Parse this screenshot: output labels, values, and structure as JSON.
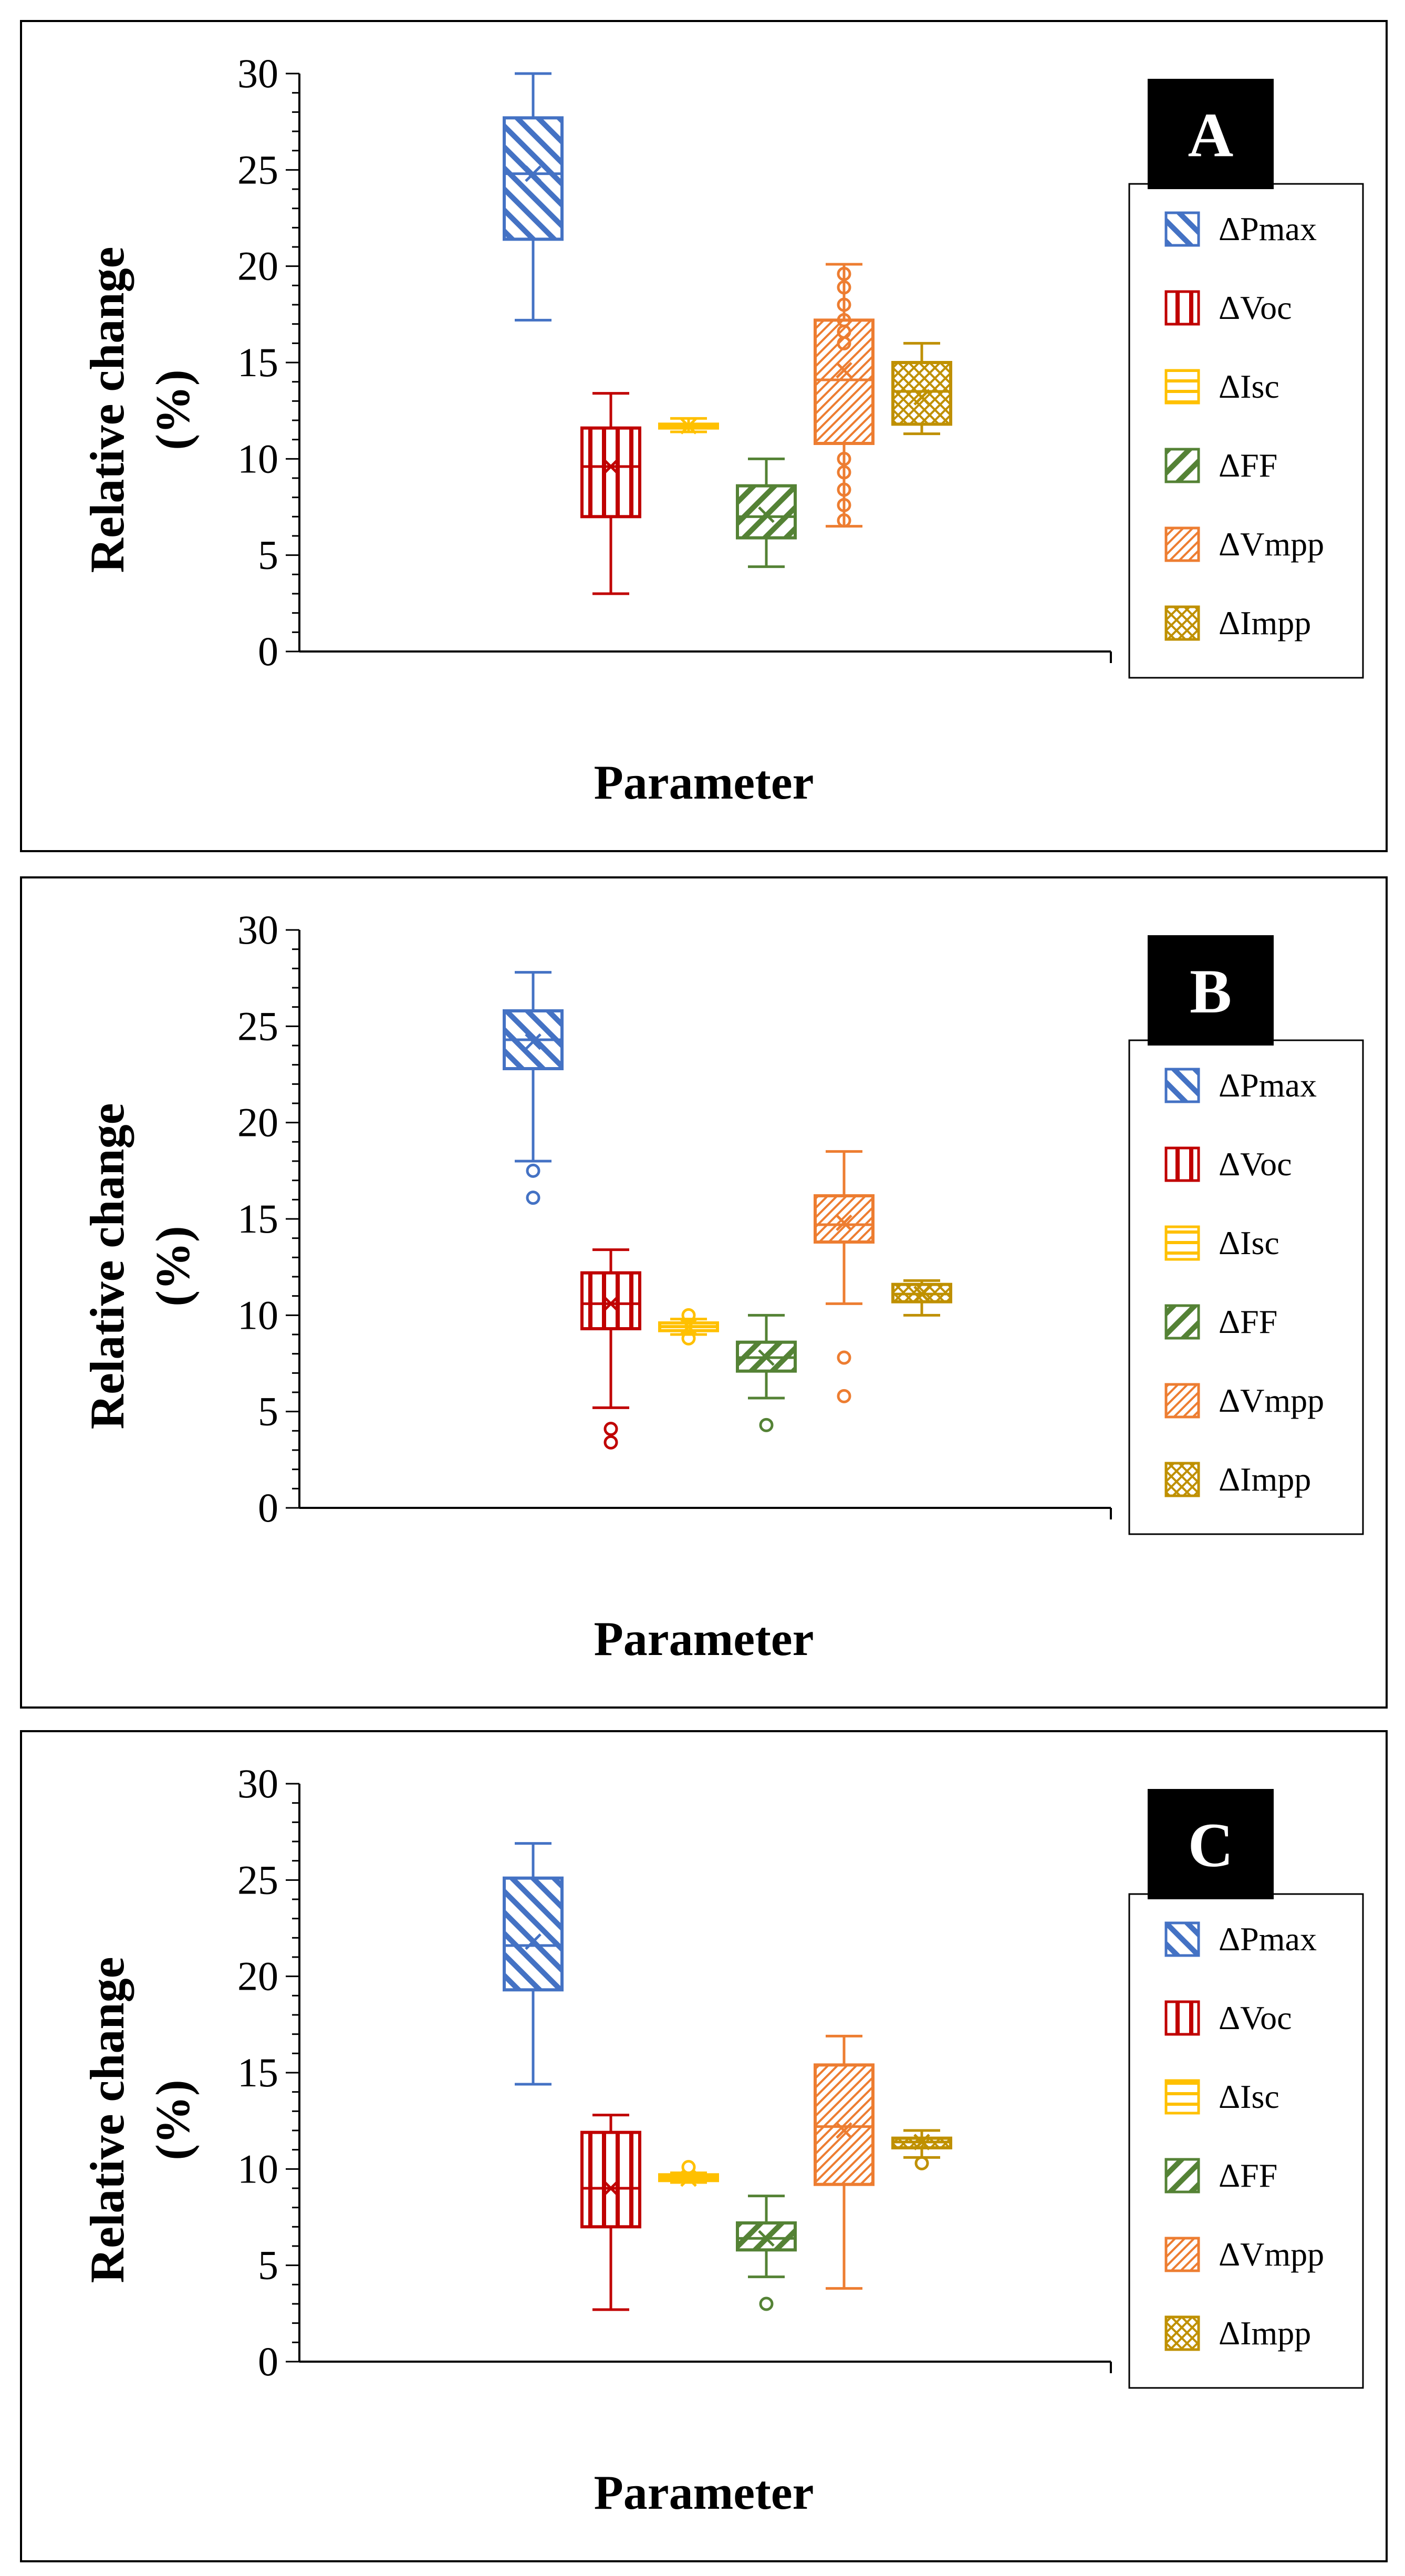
{
  "chart_data": [
    {
      "type": "box",
      "panel_label": "A",
      "xlabel": "Parameter",
      "ylabel_lines": [
        "Relative change",
        "(%)"
      ],
      "ylim": [
        0,
        30
      ],
      "yticks": [
        0,
        5,
        10,
        15,
        20,
        25,
        30
      ],
      "legend_position": "right",
      "series": [
        {
          "name": "ΔPmax",
          "color": "#4472C4",
          "pattern": "wide-downward-diagonal",
          "min": 17.2,
          "q1": 21.4,
          "median": 24.8,
          "q3": 27.7,
          "max": 30.0,
          "mean": 24.8,
          "outliers": []
        },
        {
          "name": "ΔVoc",
          "color": "#C00000",
          "pattern": "vertical",
          "min": 3.0,
          "q1": 7.0,
          "median": 9.6,
          "q3": 11.6,
          "max": 13.4,
          "mean": 9.6,
          "outliers": []
        },
        {
          "name": "ΔIsc",
          "color": "#FFC000",
          "pattern": "horizontal",
          "min": 11.4,
          "q1": 11.6,
          "median": 11.7,
          "q3": 11.8,
          "max": 12.1,
          "mean": 11.7,
          "outliers": []
        },
        {
          "name": "ΔFF",
          "color": "#548235",
          "pattern": "wide-upward-diagonal",
          "min": 4.4,
          "q1": 5.9,
          "median": 7.0,
          "q3": 8.6,
          "max": 10.0,
          "mean": 7.1,
          "outliers": []
        },
        {
          "name": "ΔVmpp",
          "color": "#ED7D31",
          "pattern": "dense-upward-diagonal",
          "min": 6.5,
          "q1": 10.8,
          "median": 14.1,
          "q3": 17.2,
          "max": 20.1,
          "mean": 14.6,
          "outliers": [
            6.8,
            7.6,
            8.4,
            9.3,
            10.0,
            16.0,
            16.6,
            17.2,
            18.0,
            18.9,
            19.6
          ]
        },
        {
          "name": "ΔImpp",
          "color": "#BF9000",
          "pattern": "diagonal-cross",
          "min": 11.3,
          "q1": 11.8,
          "median": 13.5,
          "q3": 15.0,
          "max": 16.0,
          "mean": 13.2,
          "outliers": []
        }
      ]
    },
    {
      "type": "box",
      "panel_label": "B",
      "xlabel": "Parameter",
      "ylabel_lines": [
        "Relative change",
        "(%)"
      ],
      "ylim": [
        0,
        30
      ],
      "yticks": [
        0,
        5,
        10,
        15,
        20,
        25,
        30
      ],
      "legend_position": "right",
      "series": [
        {
          "name": "ΔPmax",
          "color": "#4472C4",
          "pattern": "wide-downward-diagonal",
          "min": 18.0,
          "q1": 22.8,
          "median": 24.3,
          "q3": 25.8,
          "max": 27.8,
          "mean": 24.2,
          "outliers": [
            17.5,
            16.1
          ]
        },
        {
          "name": "ΔVoc",
          "color": "#C00000",
          "pattern": "vertical",
          "min": 5.2,
          "q1": 9.3,
          "median": 10.6,
          "q3": 12.2,
          "max": 13.4,
          "mean": 10.6,
          "outliers": [
            4.1,
            3.4
          ]
        },
        {
          "name": "ΔIsc",
          "color": "#FFC000",
          "pattern": "horizontal",
          "min": 9.0,
          "q1": 9.2,
          "median": 9.4,
          "q3": 9.6,
          "max": 9.8,
          "mean": 9.4,
          "outliers": [
            8.8,
            10.0
          ]
        },
        {
          "name": "ΔFF",
          "color": "#548235",
          "pattern": "wide-upward-diagonal",
          "min": 5.7,
          "q1": 7.1,
          "median": 7.8,
          "q3": 8.6,
          "max": 10.0,
          "mean": 7.8,
          "outliers": [
            4.3
          ]
        },
        {
          "name": "ΔVmpp",
          "color": "#ED7D31",
          "pattern": "dense-upward-diagonal",
          "min": 10.6,
          "q1": 13.8,
          "median": 14.7,
          "q3": 16.2,
          "max": 18.5,
          "mean": 14.8,
          "outliers": [
            7.8,
            5.8
          ]
        },
        {
          "name": "ΔImpp",
          "color": "#BF9000",
          "pattern": "diagonal-cross",
          "min": 10.0,
          "q1": 10.7,
          "median": 11.1,
          "q3": 11.6,
          "max": 11.8,
          "mean": 11.1,
          "outliers": []
        }
      ]
    },
    {
      "type": "box",
      "panel_label": "C",
      "xlabel": "Parameter",
      "ylabel_lines": [
        "Relative change",
        "(%)"
      ],
      "ylim": [
        0,
        30
      ],
      "yticks": [
        0,
        5,
        10,
        15,
        20,
        25,
        30
      ],
      "legend_position": "right",
      "series": [
        {
          "name": "ΔPmax",
          "color": "#4472C4",
          "pattern": "wide-downward-diagonal",
          "min": 14.4,
          "q1": 19.3,
          "median": 21.6,
          "q3": 25.1,
          "max": 26.9,
          "mean": 21.8,
          "outliers": []
        },
        {
          "name": "ΔVoc",
          "color": "#C00000",
          "pattern": "vertical",
          "min": 2.7,
          "q1": 7.0,
          "median": 9.0,
          "q3": 11.9,
          "max": 12.8,
          "mean": 9.0,
          "outliers": []
        },
        {
          "name": "ΔIsc",
          "color": "#FFC000",
          "pattern": "horizontal",
          "min": 9.3,
          "q1": 9.4,
          "median": 9.5,
          "q3": 9.7,
          "max": 9.8,
          "mean": 9.5,
          "outliers": [
            10.1
          ]
        },
        {
          "name": "ΔFF",
          "color": "#548235",
          "pattern": "wide-upward-diagonal",
          "min": 4.4,
          "q1": 5.8,
          "median": 6.4,
          "q3": 7.2,
          "max": 8.6,
          "mean": 6.4,
          "outliers": [
            3.0
          ]
        },
        {
          "name": "ΔVmpp",
          "color": "#ED7D31",
          "pattern": "dense-upward-diagonal",
          "min": 3.8,
          "q1": 9.2,
          "median": 12.2,
          "q3": 15.4,
          "max": 16.9,
          "mean": 12.0,
          "outliers": []
        },
        {
          "name": "ΔImpp",
          "color": "#BF9000",
          "pattern": "diagonal-cross",
          "min": 10.6,
          "q1": 11.1,
          "median": 11.4,
          "q3": 11.6,
          "max": 12.0,
          "mean": 11.4,
          "outliers": [
            10.3
          ]
        }
      ]
    }
  ]
}
